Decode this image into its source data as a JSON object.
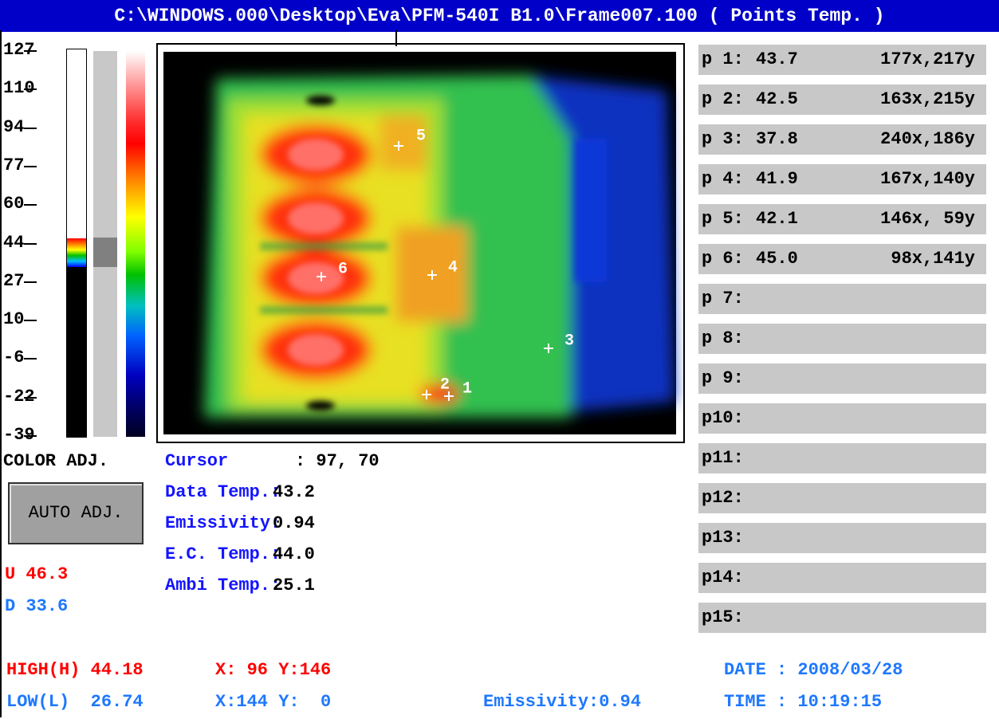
{
  "title": "C:\\WINDOWS.000\\Desktop\\Eva\\PFM-540I B1.0\\Frame007.100 ( Points Temp. )",
  "scale_labels": [
    "127",
    "110",
    "94",
    "77",
    "60",
    "44",
    "27",
    "10",
    "-6",
    "-22",
    "-39"
  ],
  "color_adj": "COLOR ADJ.",
  "auto_adj_button": "AUTO ADJ.",
  "upper": "U 46.3",
  "lower": "D 33.6",
  "info": [
    {
      "label": "Cursor",
      "value": ": 97, 70"
    },
    {
      "label": "Data Temp.:",
      "value": "43.2"
    },
    {
      "label": "Emissivity:",
      "value": "0.94"
    },
    {
      "label": "E.C. Temp.:",
      "value": "44.0"
    },
    {
      "label": "Ambi Temp.:",
      "value": "25.1"
    }
  ],
  "image_markers": [
    "1",
    "2",
    "3",
    "4",
    "5",
    "6"
  ],
  "points": [
    {
      "label": "p 1:",
      "temp": "43.7",
      "coords": "177x,217y"
    },
    {
      "label": "p 2:",
      "temp": "42.5",
      "coords": "163x,215y"
    },
    {
      "label": "p 3:",
      "temp": "37.8",
      "coords": "240x,186y"
    },
    {
      "label": "p 4:",
      "temp": "41.9",
      "coords": "167x,140y"
    },
    {
      "label": "p 5:",
      "temp": "42.1",
      "coords": "146x, 59y"
    },
    {
      "label": "p 6:",
      "temp": "45.0",
      "coords": "98x,141y"
    },
    {
      "label": "p 7:"
    },
    {
      "label": "p 8:"
    },
    {
      "label": "p 9:"
    },
    {
      "label": "p10:"
    },
    {
      "label": "p11:"
    },
    {
      "label": "p12:"
    },
    {
      "label": "p13:"
    },
    {
      "label": "p14:"
    },
    {
      "label": "p15:"
    }
  ],
  "footer": {
    "high": "HIGH(H) 44.18",
    "high_xy": "X: 96 Y:146",
    "low": "LOW(L)  26.74",
    "low_xy": "X:144 Y:  0",
    "emissivity": "Emissivity:0.94",
    "date": "DATE : 2008/03/28",
    "time": "TIME : 10:19:15"
  }
}
